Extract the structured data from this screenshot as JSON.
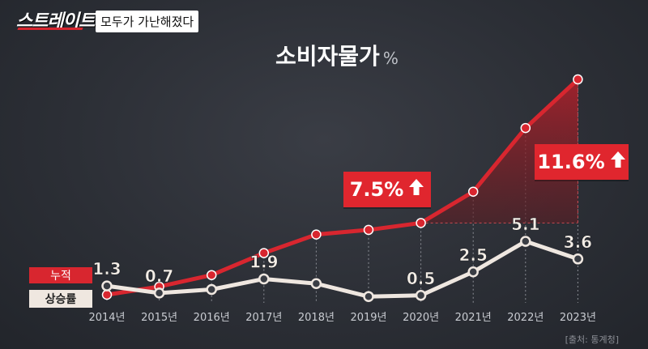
{
  "header": {
    "logo_text": "스트레이트",
    "subtitle": "모두가 가난해졌다"
  },
  "title": "소비자물가",
  "title_unit": "%",
  "callouts": {
    "first": "7.5%",
    "second": "11.6%"
  },
  "legend": {
    "red_label": "누적",
    "white_label": "상승률"
  },
  "source": "[출처: 통계청]",
  "colors": {
    "red": "#d8262f",
    "white": "#efe7e0",
    "background": "#2b2e35"
  },
  "chart_data": {
    "type": "line",
    "categories": [
      "2014년",
      "2015년",
      "2016년",
      "2017년",
      "2018년",
      "2019년",
      "2020년",
      "2021년",
      "2022년",
      "2023년"
    ],
    "series": [
      {
        "name": "상승률",
        "values": [
          1.3,
          0.7,
          1.0,
          1.9,
          1.5,
          0.4,
          0.5,
          2.5,
          5.1,
          3.6
        ],
        "labels": [
          "1.3",
          "0.7",
          "",
          "1.9",
          "",
          "",
          "0.5",
          "2.5",
          "5.1",
          "3.6"
        ]
      },
      {
        "name": "누적",
        "values": [
          1.3,
          2.0,
          3.0,
          4.9,
          6.5,
          6.9,
          7.5,
          10.2,
          15.7,
          19.9
        ]
      }
    ],
    "annotations": [
      {
        "text": "7.5%",
        "from": "2014년",
        "to": "2020년"
      },
      {
        "text": "11.6%",
        "from": "2020년",
        "to": "2023년"
      }
    ]
  }
}
